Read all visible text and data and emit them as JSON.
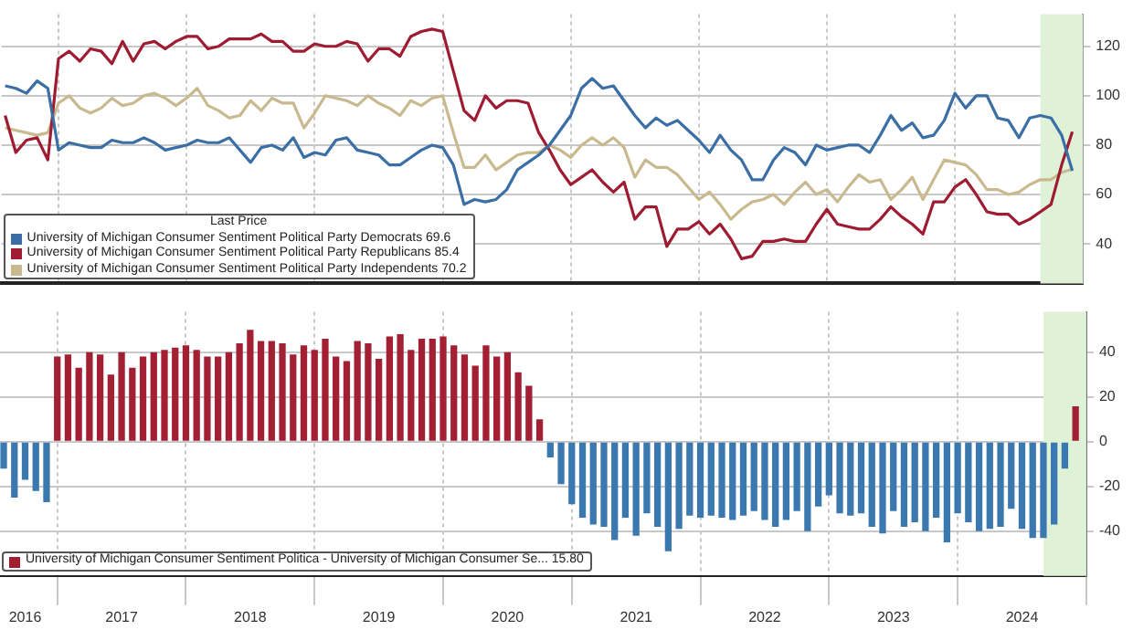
{
  "chart_data": [
    {
      "type": "line",
      "legend_title": "Last Price",
      "legend": "bottom left",
      "grid": true,
      "tick_labels": "y",
      "x": [
        "2016-08",
        "2016-09",
        "2016-10",
        "2016-11",
        "2016-12",
        "2017-01",
        "2017-02",
        "2017-03",
        "2017-04",
        "2017-05",
        "2017-06",
        "2017-07",
        "2017-08",
        "2017-09",
        "2017-10",
        "2017-11",
        "2017-12",
        "2018-01",
        "2018-02",
        "2018-03",
        "2018-04",
        "2018-05",
        "2018-06",
        "2018-07",
        "2018-08",
        "2018-09",
        "2018-10",
        "2018-11",
        "2018-12",
        "2019-01",
        "2019-02",
        "2019-03",
        "2019-04",
        "2019-05",
        "2019-06",
        "2019-07",
        "2019-08",
        "2019-09",
        "2019-10",
        "2019-11",
        "2019-12",
        "2020-01",
        "2020-02",
        "2020-03",
        "2020-04",
        "2020-05",
        "2020-06",
        "2020-07",
        "2020-08",
        "2020-09",
        "2020-10",
        "2020-11",
        "2020-12",
        "2021-01",
        "2021-02",
        "2021-03",
        "2021-04",
        "2021-05",
        "2021-06",
        "2021-07",
        "2021-08",
        "2021-09",
        "2021-10",
        "2021-11",
        "2021-12",
        "2022-01",
        "2022-02",
        "2022-03",
        "2022-04",
        "2022-05",
        "2022-06",
        "2022-07",
        "2022-08",
        "2022-09",
        "2022-10",
        "2022-11",
        "2022-12",
        "2023-01",
        "2023-02",
        "2023-03",
        "2023-04",
        "2023-05",
        "2023-06",
        "2023-07",
        "2023-08",
        "2023-09",
        "2023-10",
        "2023-11",
        "2023-12",
        "2024-01",
        "2024-02",
        "2024-03",
        "2024-04",
        "2024-05",
        "2024-06",
        "2024-07",
        "2024-08",
        "2024-09",
        "2024-10",
        "2024-11",
        "2024-12"
      ],
      "xlim": [
        "2016-07-21",
        "2025-01-01"
      ],
      "xticks": [
        {
          "value": "2017-01",
          "label": null
        },
        {
          "value": "2018-01",
          "label": null
        },
        {
          "value": "2019-01",
          "label": null
        },
        {
          "value": "2020-01",
          "label": null
        },
        {
          "value": "2021-01",
          "label": null
        },
        {
          "value": "2022-01",
          "label": null
        },
        {
          "value": "2023-01",
          "label": null
        },
        {
          "value": "2024-01",
          "label": null
        },
        {
          "value": "2025-01",
          "label": null
        }
      ],
      "ylim": [
        24,
        133
      ],
      "yticks": [
        40,
        60,
        80,
        100,
        120
      ],
      "bands": [
        {
          "axis": "x",
          "from": "2024-09",
          "to": "2025-01",
          "color": "#dff2d8"
        }
      ],
      "series": [
        {
          "name": "University of Michigan Consumer Sentiment Political Party Democrats 69.6",
          "color": "#3a6ea5",
          "values": [
            104,
            103,
            101,
            106,
            103,
            78,
            81,
            80,
            79,
            79,
            82,
            81,
            81,
            83,
            81,
            78,
            79,
            80,
            82,
            81,
            81,
            83,
            78,
            73,
            79,
            80,
            78,
            83,
            75,
            77,
            76,
            82,
            83,
            78,
            77,
            76,
            72,
            72,
            75,
            78,
            80,
            79,
            72,
            56,
            58,
            57,
            58,
            62,
            70,
            73,
            76,
            80,
            86,
            92,
            103,
            107,
            103,
            104,
            98,
            92,
            87,
            91,
            88,
            90,
            86,
            82,
            77,
            84,
            78,
            74,
            66,
            66,
            74,
            79,
            77,
            72,
            80,
            78,
            79,
            80,
            80,
            77,
            84,
            92,
            86,
            89,
            83,
            84,
            90,
            101,
            95,
            100,
            100,
            91,
            90,
            83,
            91,
            92,
            91,
            84,
            69.6
          ]
        },
        {
          "name": "University of Michigan Consumer Sentiment Political Party Republicans 85.4",
          "color": "#9e1b32",
          "values": [
            92,
            77,
            82,
            83,
            74,
            115,
            118,
            114,
            119,
            118,
            113,
            122,
            114,
            121,
            122,
            119,
            122,
            124,
            124,
            119,
            120,
            123,
            123,
            123,
            125,
            122,
            122,
            118,
            118,
            121,
            120,
            120,
            122,
            121,
            114,
            119,
            119,
            116,
            124,
            126,
            127,
            126,
            110,
            94,
            90,
            100,
            95,
            98,
            98,
            97,
            85,
            78,
            70,
            64,
            67,
            70,
            65,
            61,
            65,
            50,
            55,
            55,
            39,
            46,
            46,
            49,
            44,
            48,
            42,
            34,
            35,
            41,
            41,
            42,
            41,
            41,
            48,
            54,
            48,
            47,
            46,
            46,
            50,
            55,
            51,
            48,
            44,
            57,
            57,
            63,
            66,
            60,
            53,
            52,
            52,
            48,
            50,
            53,
            56,
            72,
            85.4
          ]
        },
        {
          "name": "University of Michigan Consumer Sentiment Political Party Independents 70.2",
          "color": "#c9b98e",
          "values": [
            87,
            86,
            85,
            84,
            85,
            97,
            100,
            95,
            93,
            95,
            99,
            96,
            97,
            100,
            101,
            99,
            96,
            99,
            103,
            96,
            94,
            91,
            92,
            98,
            94,
            99,
            97,
            97,
            87,
            93,
            100,
            99,
            98,
            96,
            100,
            97,
            95,
            92,
            98,
            96,
            99,
            100,
            85,
            71,
            71,
            76,
            70,
            73,
            76,
            77,
            77,
            80,
            78,
            75,
            80,
            83,
            80,
            83,
            79,
            67,
            74,
            71,
            71,
            68,
            63,
            58,
            61,
            56,
            50,
            54,
            57,
            58,
            60,
            56,
            61,
            65,
            60,
            62,
            57,
            63,
            68,
            65,
            66,
            58,
            62,
            67,
            58,
            66,
            74,
            73,
            72,
            68,
            62,
            62,
            60,
            61,
            64,
            66,
            66,
            69,
            70.2
          ]
        }
      ]
    },
    {
      "type": "bar",
      "legend": "bottom left",
      "grid": true,
      "x": [
        "2016-08",
        "2016-09",
        "2016-10",
        "2016-11",
        "2016-12",
        "2017-01",
        "2017-02",
        "2017-03",
        "2017-04",
        "2017-05",
        "2017-06",
        "2017-07",
        "2017-08",
        "2017-09",
        "2017-10",
        "2017-11",
        "2017-12",
        "2018-01",
        "2018-02",
        "2018-03",
        "2018-04",
        "2018-05",
        "2018-06",
        "2018-07",
        "2018-08",
        "2018-09",
        "2018-10",
        "2018-11",
        "2018-12",
        "2019-01",
        "2019-02",
        "2019-03",
        "2019-04",
        "2019-05",
        "2019-06",
        "2019-07",
        "2019-08",
        "2019-09",
        "2019-10",
        "2019-11",
        "2019-12",
        "2020-01",
        "2020-02",
        "2020-03",
        "2020-04",
        "2020-05",
        "2020-06",
        "2020-07",
        "2020-08",
        "2020-09",
        "2020-10",
        "2020-11",
        "2020-12",
        "2021-01",
        "2021-02",
        "2021-03",
        "2021-04",
        "2021-05",
        "2021-06",
        "2021-07",
        "2021-08",
        "2021-09",
        "2021-10",
        "2021-11",
        "2021-12",
        "2022-01",
        "2022-02",
        "2022-03",
        "2022-04",
        "2022-05",
        "2022-06",
        "2022-07",
        "2022-08",
        "2022-09",
        "2022-10",
        "2022-11",
        "2022-12",
        "2023-01",
        "2023-02",
        "2023-03",
        "2023-04",
        "2023-05",
        "2023-06",
        "2023-07",
        "2023-08",
        "2023-09",
        "2023-10",
        "2023-11",
        "2023-12",
        "2024-01",
        "2024-02",
        "2024-03",
        "2024-04",
        "2024-05",
        "2024-06",
        "2024-07",
        "2024-08",
        "2024-09",
        "2024-10",
        "2024-11",
        "2024-12"
      ],
      "xlim": [
        "2016-07-21",
        "2025-01-01"
      ],
      "xticks": [
        {
          "value": "2016-10",
          "label": "2016"
        },
        {
          "value": "2017-01",
          "label": null
        },
        {
          "value": "2017-07",
          "label": "2017"
        },
        {
          "value": "2018-01",
          "label": null
        },
        {
          "value": "2018-07",
          "label": "2018"
        },
        {
          "value": "2019-01",
          "label": null
        },
        {
          "value": "2019-07",
          "label": "2019"
        },
        {
          "value": "2020-01",
          "label": null
        },
        {
          "value": "2020-07",
          "label": "2020"
        },
        {
          "value": "2021-01",
          "label": null
        },
        {
          "value": "2021-07",
          "label": "2021"
        },
        {
          "value": "2022-01",
          "label": null
        },
        {
          "value": "2022-07",
          "label": "2022"
        },
        {
          "value": "2023-01",
          "label": null
        },
        {
          "value": "2023-07",
          "label": "2023"
        },
        {
          "value": "2024-01",
          "label": null
        },
        {
          "value": "2024-07",
          "label": "2024"
        },
        {
          "value": "2025-01",
          "label": null
        }
      ],
      "ylim": [
        -60,
        58
      ],
      "yticks": [
        -40,
        -20,
        0,
        20,
        40
      ],
      "bands": [
        {
          "axis": "x",
          "from": "2024-09",
          "to": "2025-01",
          "color": "#dff2d8"
        }
      ],
      "series": [
        {
          "name": "University of Michigan Consumer Sentiment Politica - University of Michigan Consumer Se... 15.80",
          "color": "#a31f34",
          "values": [
            -12,
            -25,
            -17,
            -22,
            -27,
            38,
            39,
            33,
            40,
            39,
            30,
            40,
            33,
            38,
            40,
            41,
            42,
            43,
            41,
            38,
            38,
            40,
            44,
            50,
            45,
            45,
            44,
            39,
            43,
            41,
            46,
            38,
            36,
            45,
            44,
            37,
            47,
            48,
            41,
            46,
            46,
            47,
            43,
            39,
            34,
            43,
            38,
            40,
            31,
            25,
            10,
            -7,
            -19,
            -28,
            -34,
            -37,
            -38,
            -44,
            -34,
            -42,
            -32,
            -38,
            -49,
            -39,
            -33,
            -34,
            -33,
            -34,
            -35,
            -33,
            -31,
            -35,
            -38,
            -35,
            -31,
            -40,
            -29,
            -24,
            -32,
            -33,
            -32,
            -38,
            -41,
            -31,
            -38,
            -36,
            -40,
            -34,
            -45,
            -32,
            -36,
            -40,
            -39,
            -38,
            -30,
            -39,
            -43,
            -43,
            -37,
            -12,
            15.8
          ],
          "colors": [
            "#3b78b0",
            "#3b78b0",
            "#3b78b0",
            "#3b78b0",
            "#3b78b0",
            "#a31f34",
            "#a31f34",
            "#a31f34",
            "#a31f34",
            "#a31f34",
            "#a31f34",
            "#a31f34",
            "#a31f34",
            "#a31f34",
            "#a31f34",
            "#a31f34",
            "#a31f34",
            "#a31f34",
            "#a31f34",
            "#a31f34",
            "#a31f34",
            "#a31f34",
            "#a31f34",
            "#a31f34",
            "#a31f34",
            "#a31f34",
            "#a31f34",
            "#a31f34",
            "#a31f34",
            "#a31f34",
            "#a31f34",
            "#a31f34",
            "#a31f34",
            "#a31f34",
            "#a31f34",
            "#a31f34",
            "#a31f34",
            "#a31f34",
            "#a31f34",
            "#a31f34",
            "#a31f34",
            "#a31f34",
            "#a31f34",
            "#a31f34",
            "#a31f34",
            "#a31f34",
            "#a31f34",
            "#a31f34",
            "#a31f34",
            "#a31f34",
            "#a31f34",
            "#3b78b0",
            "#3b78b0",
            "#3b78b0",
            "#3b78b0",
            "#3b78b0",
            "#3b78b0",
            "#3b78b0",
            "#3b78b0",
            "#3b78b0",
            "#3b78b0",
            "#3b78b0",
            "#3b78b0",
            "#3b78b0",
            "#3b78b0",
            "#3b78b0",
            "#3b78b0",
            "#3b78b0",
            "#3b78b0",
            "#3b78b0",
            "#3b78b0",
            "#3b78b0",
            "#3b78b0",
            "#3b78b0",
            "#3b78b0",
            "#3b78b0",
            "#3b78b0",
            "#3b78b0",
            "#3b78b0",
            "#3b78b0",
            "#3b78b0",
            "#3b78b0",
            "#3b78b0",
            "#3b78b0",
            "#3b78b0",
            "#3b78b0",
            "#3b78b0",
            "#3b78b0",
            "#3b78b0",
            "#3b78b0",
            "#3b78b0",
            "#3b78b0",
            "#3b78b0",
            "#3b78b0",
            "#3b78b0",
            "#3b78b0",
            "#3b78b0",
            "#3b78b0",
            "#3b78b0",
            "#3b78b0",
            "#a31f34"
          ]
        }
      ]
    }
  ]
}
